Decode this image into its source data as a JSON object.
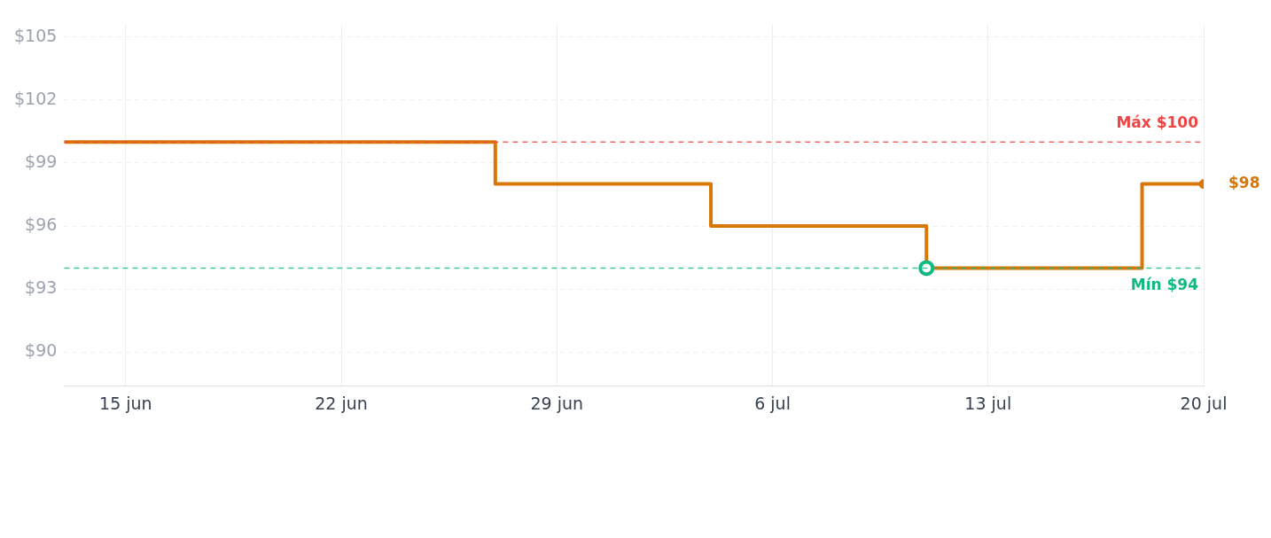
{
  "chart_data": {
    "type": "step",
    "x": [
      "--06-13",
      "--06-27",
      "--07-04",
      "--07-11",
      "--07-18",
      "--07-20"
    ],
    "series": [
      {
        "color": "#d97706",
        "values": [
          100,
          98,
          96,
          94,
          98,
          98
        ],
        "marker": "none"
      },
      {
        "type": "scatter",
        "color": "#10b981",
        "x": [
          "--07-11"
        ],
        "values": [
          94
        ],
        "marker": "circle"
      },
      {
        "type": "scatter",
        "color": "#d97706",
        "x": [
          "--07-20"
        ],
        "values": [
          98
        ],
        "marker": "circle"
      }
    ],
    "xlim": [
      "--06-13",
      "--07-20"
    ],
    "xticks": [
      {
        "value": "--06-15",
        "label": "15 jun"
      },
      {
        "value": "--06-22",
        "label": "22 jun"
      },
      {
        "value": "--06-29",
        "label": "29 jun"
      },
      {
        "value": "--07-06",
        "label": "6 jul"
      },
      {
        "value": "--07-13",
        "label": "13 jul"
      },
      {
        "value": "--07-20",
        "label": "20 jul"
      }
    ],
    "ylim": [
      88.4,
      105.6
    ],
    "yticks": [
      {
        "value": 90,
        "label": "$90"
      },
      {
        "value": 93,
        "label": "$93"
      },
      {
        "value": 96,
        "label": "$96"
      },
      {
        "value": 99,
        "label": "$99"
      },
      {
        "value": 102,
        "label": "$102"
      },
      {
        "value": 105,
        "label": "$105"
      }
    ],
    "ref_lines": [
      {
        "axis": "y",
        "value": 100,
        "label": "Máx $100",
        "color": "#ef4444",
        "line_style": "dashed"
      },
      {
        "axis": "y",
        "value": 94,
        "label": "Mín $94",
        "color": "#10b981",
        "line_style": "dashed"
      }
    ],
    "annotations": [
      {
        "text": "$98",
        "x": "--07-20",
        "y": 98
      }
    ],
    "grid": true,
    "legend": false
  }
}
